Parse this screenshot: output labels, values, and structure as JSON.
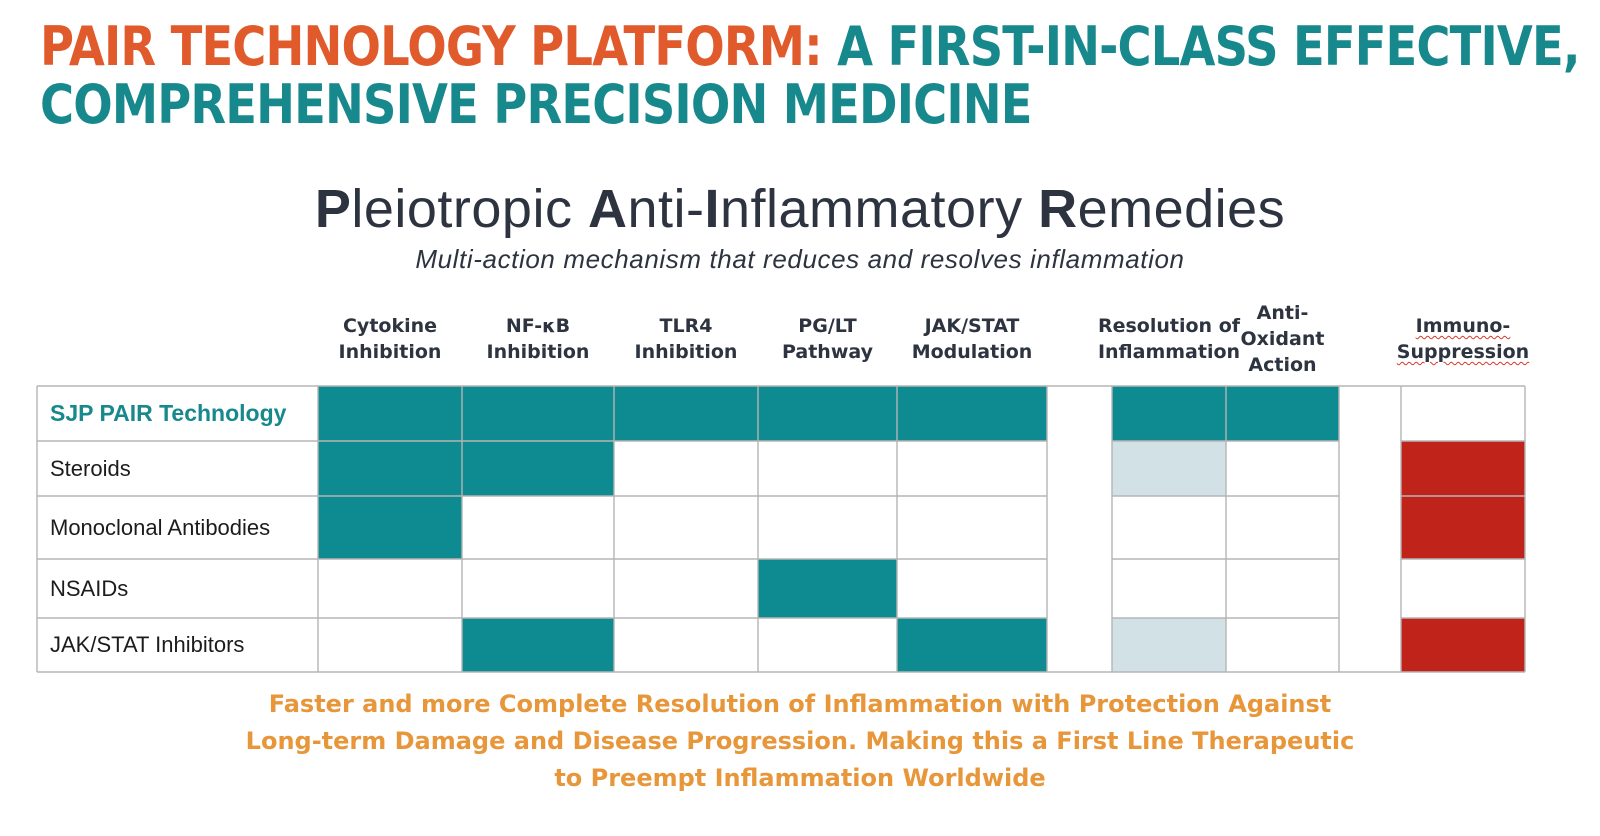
{
  "title": {
    "part_orange": "PAIR TECHNOLOGY PLATFORM:",
    "part_teal_line1": " A FIRST-IN-CLASS EFFECTIVE,",
    "line2": "COMPREHENSIVE PRECISION MEDICINE"
  },
  "subtitle": {
    "p": "P",
    "p_rest": "leiotropic ",
    "a": "A",
    "a_rest": "nti-",
    "i": "I",
    "i_rest": "nflammatory ",
    "r": "R",
    "r_rest": "emedies"
  },
  "tagline": "Multi-action mechanism that reduces and resolves inflammation",
  "columns": [
    "Cytokine\nInhibition",
    "NF-κB\nInhibition",
    "TLR4\nInhibition",
    "PG/LT\nPathway",
    "JAK/STAT\nModulation",
    "Resolution of\nInflammation",
    "Anti-\nOxidant\nAction",
    "Immuno-\nSuppression"
  ],
  "rows": [
    {
      "label": "SJP PAIR Technology",
      "cells": [
        "teal",
        "teal",
        "teal",
        "teal",
        "teal",
        "teal",
        "teal",
        "white"
      ]
    },
    {
      "label": "Steroids",
      "cells": [
        "teal",
        "teal",
        "white",
        "white",
        "white",
        "light",
        "white",
        "red"
      ]
    },
    {
      "label": "Monoclonal Antibodies",
      "cells": [
        "teal",
        "white",
        "white",
        "white",
        "white",
        "white",
        "white",
        "red"
      ]
    },
    {
      "label": "NSAIDs",
      "cells": [
        "white",
        "white",
        "white",
        "teal",
        "white",
        "white",
        "white",
        "white"
      ]
    },
    {
      "label": "JAK/STAT Inhibitors",
      "cells": [
        "white",
        "teal",
        "white",
        "white",
        "teal",
        "light",
        "white",
        "red"
      ]
    }
  ],
  "colors": {
    "teal": "#0e8a91",
    "light": "#d2e1e5",
    "red": "#c0231a",
    "white": "#ffffff",
    "grid": "#b5b5b5",
    "title_orange": "#e05a2b",
    "title_teal": "#17898d",
    "footer": "#e8963a"
  },
  "footer": {
    "line1": "Faster and more Complete Resolution of Inflammation with Protection Against",
    "line2": "Long-term Damage and Disease Progression. Making this a First Line Therapeutic",
    "line3": "to Preempt Inflammation Worldwide"
  }
}
